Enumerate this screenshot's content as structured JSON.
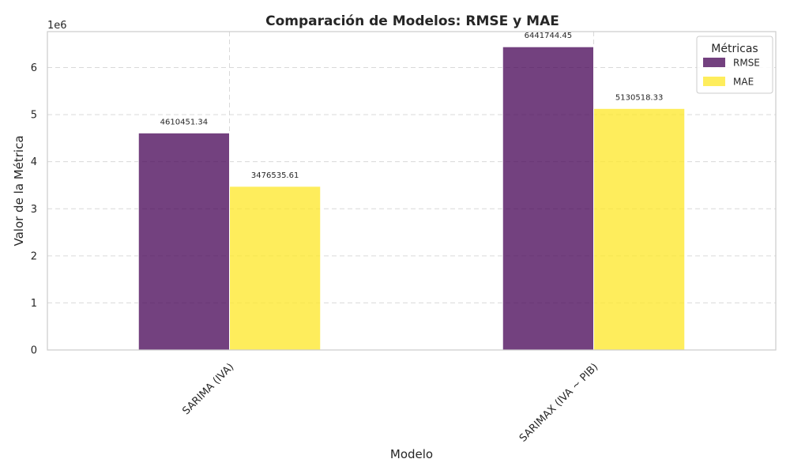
{
  "chart_data": {
    "type": "bar",
    "title": "Comparación de Modelos: RMSE y MAE",
    "xlabel": "Modelo",
    "ylabel": "Valor de la Métrica",
    "y_scale_label": "1e6",
    "categories": [
      "SARIMA (IVA)",
      "SARIMAX (IVA ~ PIB)"
    ],
    "series": [
      {
        "name": "RMSE",
        "values": [
          4610451.34,
          6441744.45
        ],
        "value_labels": [
          "4610451.34",
          "6441744.45"
        ],
        "color": "#440154"
      },
      {
        "name": "MAE",
        "values": [
          3476535.61,
          5130518.33
        ],
        "value_labels": [
          "3476535.61",
          "5130518.33"
        ],
        "color": "#fde725"
      }
    ],
    "ylim": [
      0,
      6763831.67
    ],
    "yticks": [
      0,
      1000000,
      2000000,
      3000000,
      4000000,
      5000000,
      6000000
    ],
    "ytick_labels": [
      "0",
      "1",
      "2",
      "3",
      "4",
      "5",
      "6"
    ],
    "legend_title": "Métricas",
    "legend_position": "top-right",
    "grid": true,
    "xtick_rotation": 45
  }
}
